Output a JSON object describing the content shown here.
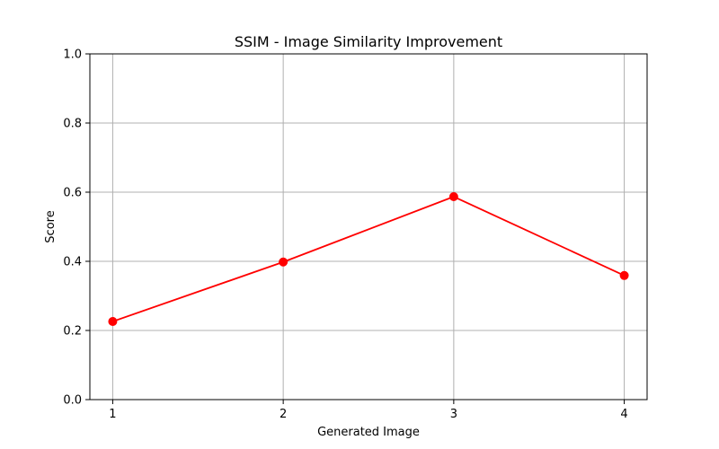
{
  "chart_data": {
    "type": "line",
    "title": "SSIM - Image Similarity Improvement",
    "xlabel": "Generated Image",
    "ylabel": "Score",
    "x": [
      1,
      2,
      3,
      4
    ],
    "xticks": [
      "1",
      "2",
      "3",
      "4"
    ],
    "yticks": [
      "0.0",
      "0.2",
      "0.4",
      "0.6",
      "0.8",
      "1.0"
    ],
    "ylim": [
      0,
      1
    ],
    "grid": true,
    "series": [
      {
        "values": [
          0.226,
          0.398,
          0.587,
          0.359
        ],
        "color": "#ff0000",
        "marker": "circle"
      }
    ],
    "colors": {
      "grid": "#b0b0b0",
      "axis": "#000000"
    }
  }
}
